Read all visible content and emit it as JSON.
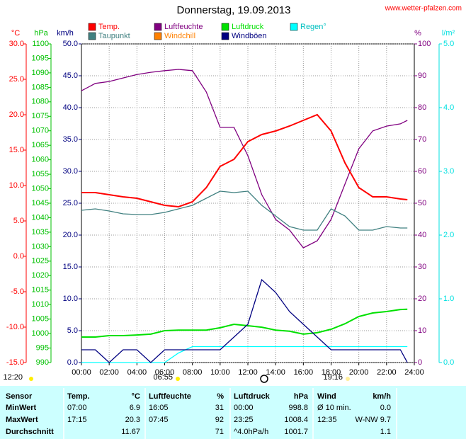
{
  "chart_data": {
    "type": "line",
    "title": "Donnerstag, 19.09.2013",
    "source": "www.wetter-pfalzen.com",
    "xlim": [
      0,
      24
    ],
    "xticks": [
      {
        "value": 0,
        "label": "00:00"
      },
      {
        "value": 2,
        "label": "02:00"
      },
      {
        "value": 4,
        "label": "04:00"
      },
      {
        "value": 6,
        "label": "06:00"
      },
      {
        "value": 8,
        "label": "08:00"
      },
      {
        "value": 10,
        "label": "10:00"
      },
      {
        "value": 12,
        "label": "12:00"
      },
      {
        "value": 14,
        "label": "14:00"
      },
      {
        "value": 16,
        "label": "16:00"
      },
      {
        "value": 18,
        "label": "18:00"
      },
      {
        "value": 20,
        "label": "20:00"
      },
      {
        "value": 22,
        "label": "22:00"
      },
      {
        "value": 24,
        "label": "24:00"
      }
    ],
    "grid": true,
    "axes": {
      "temp": {
        "unit": "°C",
        "color": "#ff0000",
        "side": "left",
        "lim": [
          -15,
          30
        ],
        "ticks": [
          {
            "value": -15,
            "label": "-15.0"
          },
          {
            "value": -10,
            "label": "-10.0"
          },
          {
            "value": -5,
            "label": "-5.0"
          },
          {
            "value": 0,
            "label": "0.0"
          },
          {
            "value": 5,
            "label": "5.0"
          },
          {
            "value": 10,
            "label": "10.0"
          },
          {
            "value": 15,
            "label": "15.0"
          },
          {
            "value": 20,
            "label": "20.0"
          },
          {
            "value": 25,
            "label": "25.0"
          },
          {
            "value": 30,
            "label": "30.0"
          }
        ]
      },
      "hpa": {
        "unit": "hPa",
        "color": "#00c000",
        "side": "left",
        "lim": [
          990,
          1100
        ],
        "ticks": [
          990,
          995,
          1000,
          1005,
          1010,
          1015,
          1020,
          1025,
          1030,
          1035,
          1040,
          1045,
          1050,
          1055,
          1060,
          1065,
          1070,
          1075,
          1080,
          1085,
          1090,
          1095,
          1100
        ]
      },
      "kmh": {
        "unit": "km/h",
        "color": "#000080",
        "side": "left",
        "lim": [
          0,
          50
        ],
        "ticks": [
          {
            "value": 0,
            "label": "0.0"
          },
          {
            "value": 5,
            "label": "5.0"
          },
          {
            "value": 10,
            "label": "10.0"
          },
          {
            "value": 15,
            "label": "15.0"
          },
          {
            "value": 20,
            "label": "20.0"
          },
          {
            "value": 25,
            "label": "25.0"
          },
          {
            "value": 30,
            "label": "30.0"
          },
          {
            "value": 35,
            "label": "35.0"
          },
          {
            "value": 40,
            "label": "40.0"
          },
          {
            "value": 45,
            "label": "45.0"
          },
          {
            "value": 50,
            "label": "50.0"
          }
        ]
      },
      "pct": {
        "unit": "%",
        "color": "#800080",
        "side": "right",
        "lim": [
          0,
          100
        ],
        "ticks": [
          0,
          10,
          20,
          30,
          40,
          50,
          60,
          70,
          80,
          90,
          100
        ]
      },
      "rain": {
        "unit": "l/m²",
        "color": "#00e0e0",
        "side": "right",
        "lim": [
          0,
          5
        ],
        "ticks": [
          {
            "value": 0,
            "label": "0.0"
          },
          {
            "value": 1,
            "label": "1.0"
          },
          {
            "value": 2,
            "label": "2.0"
          },
          {
            "value": 3,
            "label": "3.0"
          },
          {
            "value": 4,
            "label": "4.0"
          },
          {
            "value": 5,
            "label": "5.0"
          }
        ]
      }
    },
    "x": [
      0,
      1,
      2,
      3,
      4,
      5,
      6,
      7,
      8,
      9,
      10,
      11,
      12,
      13,
      14,
      15,
      16,
      17,
      18,
      19,
      20,
      21,
      22,
      23,
      23.5
    ],
    "series": [
      {
        "name": "Temp.",
        "color": "#ff0000",
        "axis": "temp",
        "values": [
          9.0,
          9.0,
          8.7,
          8.4,
          8.2,
          7.7,
          7.2,
          7.0,
          7.7,
          9.7,
          12.7,
          13.7,
          16.2,
          17.2,
          17.7,
          18.4,
          19.2,
          20.0,
          17.7,
          13.2,
          9.7,
          8.4,
          8.4,
          8.1,
          8.0
        ]
      },
      {
        "name": "Luftfeuchte",
        "color": "#800080",
        "axis": "pct",
        "values": [
          85.3,
          87.6,
          88.2,
          89.3,
          90.4,
          91.1,
          91.6,
          92,
          91.6,
          84.9,
          73.8,
          73.8,
          64.9,
          52.7,
          44.9,
          41.6,
          36,
          38.2,
          44.9,
          56,
          67.1,
          72.7,
          74.2,
          74.9,
          76
        ]
      },
      {
        "name": "Luftdruck",
        "color": "#00e000",
        "axis": "hpa",
        "values": [
          998.8,
          998.8,
          999.3,
          999.3,
          999.5,
          999.8,
          1001,
          1001.2,
          1001.2,
          1001.2,
          1002,
          1003.2,
          1002.7,
          1002.2,
          1001.2,
          1000.8,
          999.8,
          1000.3,
          1001.5,
          1003.4,
          1005.9,
          1007.1,
          1007.6,
          1008.3,
          1008.4
        ]
      },
      {
        "name": "Regen°",
        "color": "#00ffff",
        "axis": "rain",
        "values": [
          0,
          0,
          0,
          0,
          0,
          0,
          0,
          0.15,
          0.25,
          0.25,
          0.25,
          0.25,
          0.25,
          0.25,
          0.25,
          0.25,
          0.25,
          0.25,
          0.25,
          0.25,
          0.25,
          0.25,
          0.25,
          0.25,
          0.25
        ]
      },
      {
        "name": "Taupunkt",
        "color": "#408080",
        "axis": "temp",
        "values": [
          6.5,
          6.7,
          6.4,
          6.0,
          5.9,
          5.9,
          6.2,
          6.7,
          7.2,
          8.2,
          9.2,
          9.0,
          9.2,
          7.2,
          5.7,
          4.2,
          3.7,
          3.7,
          6.7,
          5.7,
          3.7,
          3.7,
          4.2,
          4.0,
          4.0
        ]
      },
      {
        "name": "Windchill",
        "color": "#ff8000",
        "axis": "temp",
        "values": [
          9.0,
          9.0,
          8.7,
          8.4,
          8.2,
          7.7,
          7.2,
          7.0,
          7.7,
          9.7,
          12.7,
          13.7,
          16.2,
          17.2,
          17.7,
          18.4,
          19.2,
          20.0,
          17.7,
          13.2,
          9.7,
          8.4,
          8.4,
          8.1,
          8.0
        ]
      },
      {
        "name": "Windböen",
        "color": "#000080",
        "axis": "kmh",
        "values": [
          2,
          2,
          0,
          2,
          2,
          0,
          2,
          2,
          2,
          2,
          2,
          4,
          6,
          13,
          11,
          8,
          6,
          4,
          2,
          2,
          2,
          2,
          2,
          2,
          0
        ]
      }
    ],
    "annotations": {
      "moon": "12:20",
      "sunrise": "06:55",
      "sunset": "19:16"
    }
  },
  "table": {
    "header": [
      "Sensor",
      "Temp.",
      "°C",
      "Luftfeuchte",
      "%",
      "Luftdruck",
      "hPa",
      "Wind",
      "km/h"
    ],
    "rows": [
      [
        "MinWert",
        "07:00",
        "6.9",
        "16:05",
        "31",
        "00:00",
        "998.8",
        "Ø 10 min.",
        "0.0"
      ],
      [
        "MaxWert",
        "17:15",
        "20.3",
        "07:45",
        "92",
        "23:25",
        "1008.4",
        "12:35",
        "W-NW 9.7"
      ],
      [
        "Durchschnitt",
        null,
        "11.67",
        null,
        "71",
        "^4.0hPa/h",
        "1001.7",
        null,
        "1.1"
      ]
    ]
  }
}
